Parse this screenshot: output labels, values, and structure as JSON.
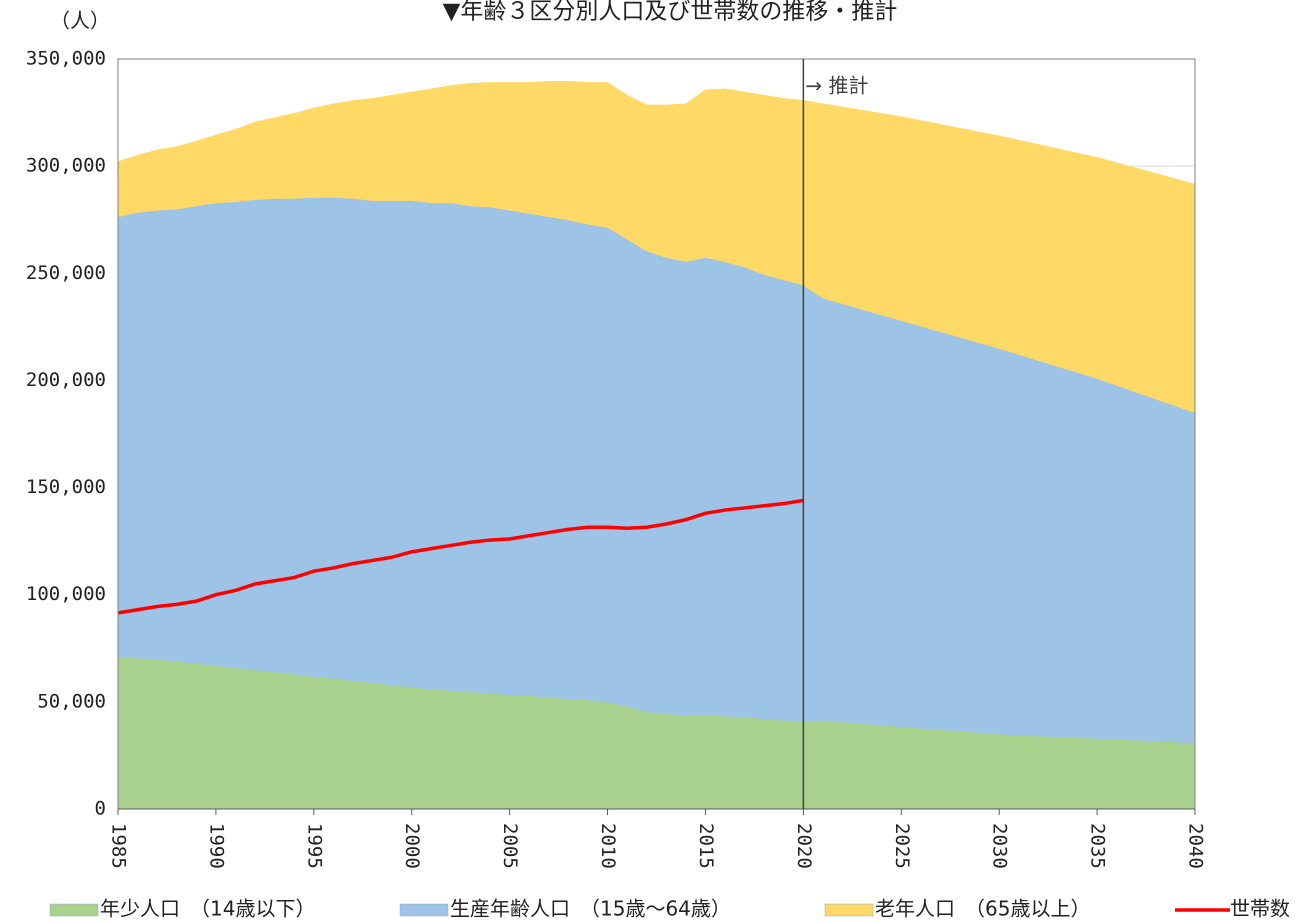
{
  "chart_data": {
    "type": "area",
    "stacked": true,
    "title": "▼年齢３区分別人口及び世帯数の推移・推計",
    "y_axis_label": "（人）",
    "annotation": {
      "text": "→ 推計",
      "x": 2020
    },
    "x": [
      1985,
      1986,
      1987,
      1988,
      1989,
      1990,
      1991,
      1992,
      1993,
      1994,
      1995,
      1996,
      1997,
      1998,
      1999,
      2000,
      2001,
      2002,
      2003,
      2004,
      2005,
      2006,
      2007,
      2008,
      2009,
      2010,
      2011,
      2012,
      2013,
      2014,
      2015,
      2016,
      2017,
      2018,
      2019,
      2020,
      2021,
      2025,
      2030,
      2035,
      2040
    ],
    "xlim": [
      1985,
      2040
    ],
    "xticks": [
      1985,
      1990,
      1995,
      2000,
      2005,
      2010,
      2015,
      2020,
      2025,
      2030,
      2035,
      2040
    ],
    "ylim": [
      0,
      350000
    ],
    "yticks": [
      0,
      {
        "value": 50000,
        "label": "50,000"
      },
      {
        "value": 100000,
        "label": "100,000"
      },
      {
        "value": 150000,
        "label": "150,000"
      },
      {
        "value": 200000,
        "label": "200,000"
      },
      {
        "value": 250000,
        "label": "250,000"
      },
      {
        "value": 300000,
        "label": "300,000"
      },
      {
        "value": 350000,
        "label": "350,000"
      }
    ],
    "grid": true,
    "legend": "bottom",
    "series": [
      {
        "name": "年少人口　（14歳以下）",
        "type": "area",
        "color": "#a9d18e",
        "values": [
          71000,
          70500,
          70000,
          69000,
          68000,
          67000,
          66000,
          65000,
          64000,
          63000,
          62000,
          61000,
          60000,
          59000,
          58000,
          57000,
          56000,
          55500,
          54800,
          54000,
          53500,
          53000,
          52200,
          51500,
          51000,
          50000,
          48000,
          45500,
          44500,
          44000,
          44000,
          43500,
          43000,
          42200,
          41500,
          41000,
          41500,
          38500,
          35000,
          33000,
          31000
        ]
      },
      {
        "name": "生産年齢人口　（15歳～64歳）",
        "type": "area",
        "color": "#9dc3e6",
        "values": [
          205500,
          208000,
          209500,
          211000,
          213500,
          216000,
          217500,
          219500,
          221000,
          222000,
          223500,
          224500,
          225000,
          225000,
          226000,
          227000,
          227000,
          227500,
          226700,
          227000,
          226000,
          225000,
          224300,
          223500,
          222000,
          221500,
          218000,
          215000,
          213000,
          211500,
          213500,
          212000,
          210000,
          207300,
          205500,
          203500,
          197000,
          189500,
          180000,
          168000,
          154000
        ]
      },
      {
        "name": "老年人口　（65歳以上）",
        "type": "area",
        "color": "#ffd966",
        "values": [
          25500,
          26500,
          28000,
          29000,
          30000,
          31500,
          33500,
          36000,
          37500,
          39500,
          41500,
          43500,
          45500,
          47500,
          49000,
          50500,
          53000,
          54500,
          57000,
          58000,
          59500,
          61000,
          63000,
          64500,
          66000,
          67500,
          67000,
          68000,
          71000,
          73500,
          78000,
          80500,
          81500,
          83500,
          84500,
          86000,
          90500,
          95000,
          99000,
          103000,
          106500
        ]
      },
      {
        "name": "世帯数",
        "type": "line",
        "color": "#ff0000",
        "values": [
          91500,
          93000,
          94500,
          95500,
          97000,
          100000,
          102000,
          105000,
          106500,
          108000,
          111000,
          112500,
          114500,
          116000,
          117500,
          120000,
          121500,
          123000,
          124500,
          125500,
          126000,
          127500,
          129000,
          130500,
          131500,
          131500,
          131000,
          131500,
          133000,
          135000,
          138000,
          139500,
          140500,
          141500,
          142500,
          144000,
          null,
          null,
          null,
          null,
          null
        ]
      }
    ]
  }
}
